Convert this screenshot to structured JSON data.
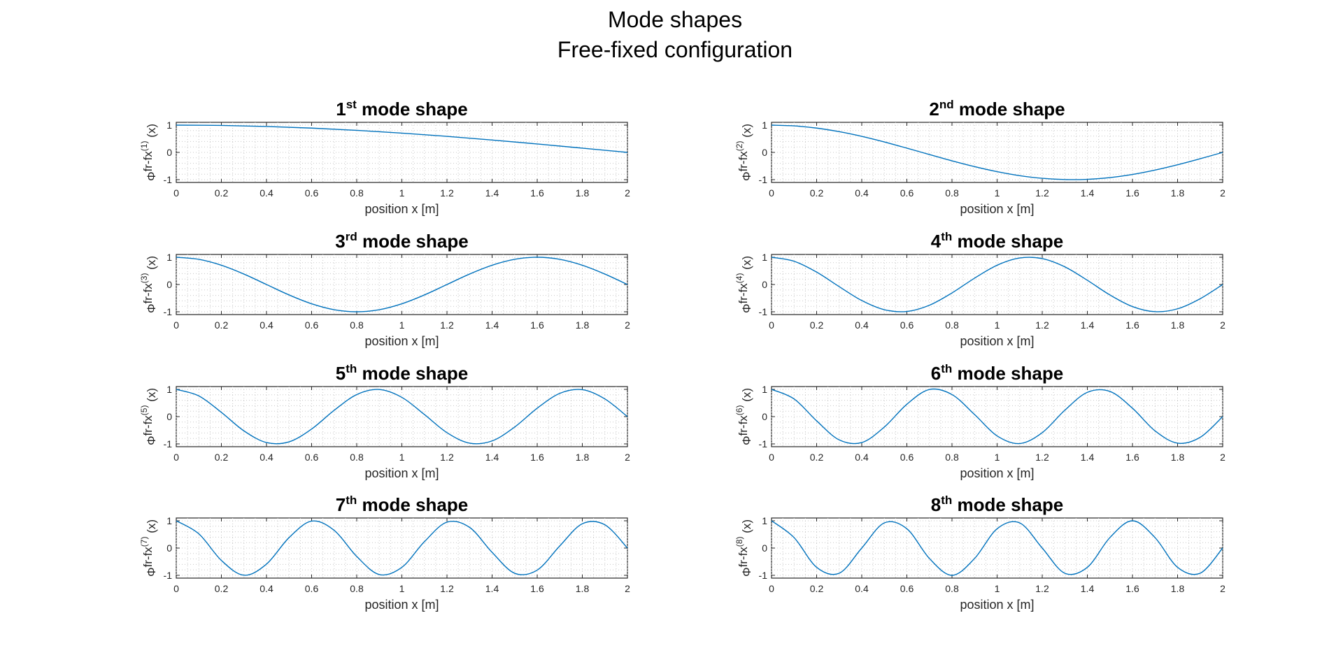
{
  "suptitle": [
    "Mode shapes",
    "Free-fixed configuration"
  ],
  "colors": {
    "line": "#0072BD",
    "axis": "#262626",
    "grid": "#c8c8c8"
  },
  "chart_data": [
    {
      "type": "line",
      "title_num": "1",
      "title_sup": "st",
      "title_rest": " mode shape",
      "xlabel": "position x [m]",
      "ylabel_base": "Φ",
      "ylabel_sup": "fr-fx",
      "ylabel_mode": "(1)",
      "ylabel_tail": "(x)",
      "xlim": [
        0,
        2
      ],
      "ylim": [
        -1,
        1
      ],
      "grid": true,
      "xticks": [
        "0",
        "0.2",
        "0.4",
        "0.6",
        "0.8",
        "1",
        "1.2",
        "1.4",
        "1.6",
        "1.8",
        "2"
      ],
      "yticks": [
        "-1",
        "0",
        "1"
      ],
      "x": [
        0,
        0.2,
        0.4,
        0.6,
        0.8,
        1.0,
        1.2,
        1.4,
        1.6,
        1.8,
        2.0
      ],
      "y": [
        1.0,
        0.988,
        0.951,
        0.891,
        0.809,
        0.707,
        0.588,
        0.454,
        0.309,
        0.156,
        0.0
      ]
    },
    {
      "type": "line",
      "title_num": "2",
      "title_sup": "nd",
      "title_rest": " mode shape",
      "xlabel": "position x [m]",
      "ylabel_base": "Φ",
      "ylabel_sup": "fr-fx",
      "ylabel_mode": "(2)",
      "ylabel_tail": "(x)",
      "xlim": [
        0,
        2
      ],
      "ylim": [
        -1,
        1
      ],
      "grid": true,
      "xticks": [
        "0",
        "0.2",
        "0.4",
        "0.6",
        "0.8",
        "1",
        "1.2",
        "1.4",
        "1.6",
        "1.8",
        "2"
      ],
      "yticks": [
        "-1",
        "0",
        "1"
      ],
      "x": [
        0,
        0.1,
        0.2,
        0.3,
        0.4,
        0.5,
        0.6,
        0.7,
        0.8,
        0.9,
        1.0,
        1.1,
        1.2,
        1.3,
        1.4,
        1.5,
        1.6,
        1.7,
        1.8,
        1.9,
        2.0
      ],
      "y": [
        1.0,
        0.972,
        0.891,
        0.76,
        0.588,
        0.383,
        0.156,
        -0.078,
        -0.309,
        -0.522,
        -0.707,
        -0.853,
        -0.951,
        -0.996,
        -0.988,
        -0.924,
        -0.809,
        -0.649,
        -0.454,
        -0.233,
        0.0
      ]
    },
    {
      "type": "line",
      "title_num": "3",
      "title_sup": "rd",
      "title_rest": " mode shape",
      "xlabel": "position x [m]",
      "ylabel_base": "Φ",
      "ylabel_sup": "fr-fx",
      "ylabel_mode": "(3)",
      "ylabel_tail": "(x)",
      "xlim": [
        0,
        2
      ],
      "ylim": [
        -1,
        1
      ],
      "grid": true,
      "xticks": [
        "0",
        "0.2",
        "0.4",
        "0.6",
        "0.8",
        "1",
        "1.2",
        "1.4",
        "1.6",
        "1.8",
        "2"
      ],
      "yticks": [
        "-1",
        "0",
        "1"
      ],
      "x": [
        0,
        0.1,
        0.2,
        0.3,
        0.4,
        0.5,
        0.6,
        0.7,
        0.8,
        0.9,
        1.0,
        1.1,
        1.2,
        1.3,
        1.4,
        1.5,
        1.6,
        1.7,
        1.8,
        1.9,
        2.0
      ],
      "y": [
        1.0,
        0.924,
        0.707,
        0.383,
        0.0,
        -0.383,
        -0.707,
        -0.924,
        -1.0,
        -0.924,
        -0.707,
        -0.383,
        0.0,
        0.383,
        0.707,
        0.924,
        1.0,
        0.924,
        0.707,
        0.383,
        0.0
      ]
    },
    {
      "type": "line",
      "title_num": "4",
      "title_sup": "th",
      "title_rest": " mode shape",
      "xlabel": "position x [m]",
      "ylabel_base": "Φ",
      "ylabel_sup": "fr-fx",
      "ylabel_mode": "(4)",
      "ylabel_tail": "(x)",
      "xlim": [
        0,
        2
      ],
      "ylim": [
        -1,
        1
      ],
      "grid": true,
      "xticks": [
        "0",
        "0.2",
        "0.4",
        "0.6",
        "0.8",
        "1",
        "1.2",
        "1.4",
        "1.6",
        "1.8",
        "2"
      ],
      "yticks": [
        "-1",
        "0",
        "1"
      ],
      "x": [
        0,
        0.1,
        0.2,
        0.3,
        0.4,
        0.5,
        0.6,
        0.7,
        0.8,
        0.9,
        1.0,
        1.1,
        1.2,
        1.3,
        1.4,
        1.5,
        1.6,
        1.7,
        1.8,
        1.9,
        2.0
      ],
      "y": [
        1.0,
        0.853,
        0.454,
        -0.078,
        -0.588,
        -0.924,
        -0.988,
        -0.76,
        -0.309,
        0.233,
        0.707,
        0.972,
        0.951,
        0.649,
        0.156,
        -0.383,
        -0.809,
        -0.996,
        -0.891,
        -0.522,
        0.0
      ]
    },
    {
      "type": "line",
      "title_num": "5",
      "title_sup": "th",
      "title_rest": " mode shape",
      "xlabel": "position x [m]",
      "ylabel_base": "Φ",
      "ylabel_sup": "fr-fx",
      "ylabel_mode": "(5)",
      "ylabel_tail": "(x)",
      "xlim": [
        0,
        2
      ],
      "ylim": [
        -1,
        1
      ],
      "grid": true,
      "xticks": [
        "0",
        "0.2",
        "0.4",
        "0.6",
        "0.8",
        "1",
        "1.2",
        "1.4",
        "1.6",
        "1.8",
        "2"
      ],
      "yticks": [
        "-1",
        "0",
        "1"
      ],
      "x": [
        0,
        0.1,
        0.2,
        0.3,
        0.4,
        0.5,
        0.6,
        0.7,
        0.8,
        0.9,
        1.0,
        1.1,
        1.2,
        1.3,
        1.4,
        1.5,
        1.6,
        1.7,
        1.8,
        1.9,
        2.0
      ],
      "y": [
        1.0,
        0.76,
        0.156,
        -0.522,
        -0.951,
        -0.924,
        -0.454,
        0.233,
        0.809,
        0.996,
        0.707,
        0.078,
        -0.588,
        -0.972,
        -0.891,
        -0.383,
        0.309,
        0.853,
        0.988,
        0.649,
        0.0
      ]
    },
    {
      "type": "line",
      "title_num": "6",
      "title_sup": "th",
      "title_rest": " mode shape",
      "xlabel": "position x [m]",
      "ylabel_base": "Φ",
      "ylabel_sup": "fr-fx",
      "ylabel_mode": "(6)",
      "ylabel_tail": "(x)",
      "xlim": [
        0,
        2
      ],
      "ylim": [
        -1,
        1
      ],
      "grid": true,
      "xticks": [
        "0",
        "0.2",
        "0.4",
        "0.6",
        "0.8",
        "1",
        "1.2",
        "1.4",
        "1.6",
        "1.8",
        "2"
      ],
      "yticks": [
        "-1",
        "0",
        "1"
      ],
      "x": [
        0,
        0.1,
        0.2,
        0.3,
        0.4,
        0.5,
        0.6,
        0.7,
        0.8,
        0.9,
        1.0,
        1.1,
        1.2,
        1.3,
        1.4,
        1.5,
        1.6,
        1.7,
        1.8,
        1.9,
        2.0
      ],
      "y": [
        1.0,
        0.649,
        -0.156,
        -0.853,
        -0.951,
        -0.383,
        0.454,
        0.996,
        0.809,
        0.078,
        -0.707,
        -0.988,
        -0.588,
        0.233,
        0.891,
        0.924,
        0.309,
        -0.522,
        -0.972,
        -0.76,
        0.0
      ]
    },
    {
      "type": "line",
      "title_num": "7",
      "title_sup": "th",
      "title_rest": " mode shape",
      "xlabel": "position x [m]",
      "ylabel_base": "Φ",
      "ylabel_sup": "fr-fx",
      "ylabel_mode": "(7)",
      "ylabel_tail": "(x)",
      "xlim": [
        0,
        2
      ],
      "ylim": [
        -1,
        1
      ],
      "grid": true,
      "xticks": [
        "0",
        "0.2",
        "0.4",
        "0.6",
        "0.8",
        "1",
        "1.2",
        "1.4",
        "1.6",
        "1.8",
        "2"
      ],
      "yticks": [
        "-1",
        "0",
        "1"
      ],
      "x": [
        0,
        0.1,
        0.2,
        0.3,
        0.4,
        0.5,
        0.6,
        0.7,
        0.8,
        0.9,
        1.0,
        1.1,
        1.2,
        1.3,
        1.4,
        1.5,
        1.6,
        1.7,
        1.8,
        1.9,
        2.0
      ],
      "y": [
        1.0,
        0.522,
        -0.454,
        -0.996,
        -0.588,
        0.383,
        0.988,
        0.649,
        -0.309,
        -0.972,
        -0.707,
        0.233,
        0.951,
        0.76,
        -0.156,
        -0.924,
        -0.809,
        0.078,
        0.891,
        0.853,
        0.0
      ]
    },
    {
      "type": "line",
      "title_num": "8",
      "title_sup": "th",
      "title_rest": " mode shape",
      "xlabel": "position x [m]",
      "ylabel_base": "Φ",
      "ylabel_sup": "fr-fx",
      "ylabel_mode": "(8)",
      "ylabel_tail": "(x)",
      "xlim": [
        0,
        2
      ],
      "ylim": [
        -1,
        1
      ],
      "grid": true,
      "xticks": [
        "0",
        "0.2",
        "0.4",
        "0.6",
        "0.8",
        "1",
        "1.2",
        "1.4",
        "1.6",
        "1.8",
        "2"
      ],
      "yticks": [
        "-1",
        "0",
        "1"
      ],
      "x": [
        0,
        0.1,
        0.2,
        0.3,
        0.4,
        0.5,
        0.6,
        0.7,
        0.8,
        0.9,
        1.0,
        1.1,
        1.2,
        1.3,
        1.4,
        1.5,
        1.6,
        1.7,
        1.8,
        1.9,
        2.0
      ],
      "y": [
        1.0,
        0.383,
        -0.707,
        -0.924,
        0.0,
        0.924,
        0.707,
        -0.383,
        -1.0,
        -0.383,
        0.707,
        0.924,
        0.0,
        -0.924,
        -0.707,
        0.383,
        1.0,
        0.383,
        -0.707,
        -0.924,
        0.0
      ]
    }
  ]
}
